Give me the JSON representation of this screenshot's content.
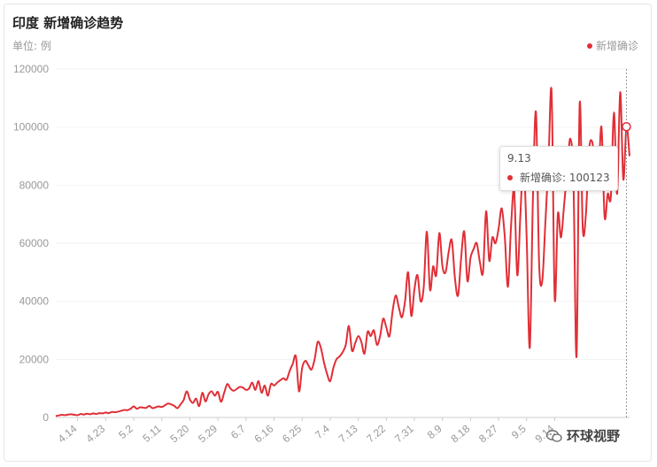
{
  "header": {
    "title": "印度 新增确诊趋势",
    "unit": "单位: 例"
  },
  "legend": {
    "label": "新增确诊",
    "color": "#e02f36"
  },
  "tooltip": {
    "date": "9.13",
    "series_label": "新增确诊",
    "value_text": "100123"
  },
  "watermark": {
    "text": "环球视野",
    "icon": "wechat-icon"
  },
  "chart_data": {
    "type": "line",
    "title": "印度 新增确诊趋势",
    "ylabel": "单位: 例",
    "ylim": [
      0,
      120000
    ],
    "yticks": [
      0,
      20000,
      40000,
      60000,
      80000,
      100000,
      120000
    ],
    "grid": true,
    "legend_position": "top-right",
    "x_tick_labels": [
      "4.14",
      "4.23",
      "5.2",
      "5.11",
      "5.20",
      "5.29",
      "6.7",
      "6.16",
      "6.25",
      "7.4",
      "7.13",
      "7.22",
      "7.31",
      "8.9",
      "8.18",
      "8.27",
      "9.5",
      "9.14"
    ],
    "series": [
      {
        "name": "新增确诊",
        "color": "#e02f36",
        "values": [
          500,
          700,
          900,
          800,
          1000,
          1100,
          900,
          800,
          1200,
          1000,
          1300,
          1100,
          1400,
          1200,
          1500,
          1400,
          1700,
          1500,
          1900,
          1800,
          2000,
          2300,
          2600,
          2500,
          3000,
          3800,
          3000,
          3500,
          3400,
          3300,
          4000,
          3200,
          3500,
          3800,
          3600,
          4200,
          4800,
          4500,
          4000,
          3200,
          4500,
          6000,
          9000,
          6200,
          5000,
          6500,
          3900,
          8500,
          5500,
          8000,
          9000,
          7500,
          8800,
          5400,
          8500,
          11500,
          10000,
          9200,
          9800,
          10500,
          10300,
          9500,
          10000,
          12000,
          9500,
          12500,
          8500,
          11000,
          7500,
          11500,
          11000,
          12000,
          12800,
          13500,
          13000,
          16000,
          18500,
          21000,
          9000,
          17000,
          19500,
          18000,
          16500,
          20000,
          26000,
          24000,
          19000,
          15000,
          12500,
          17000,
          20000,
          21000,
          22500,
          25000,
          31500,
          23000,
          25500,
          28000,
          26000,
          22000,
          29500,
          28000,
          30000,
          25000,
          28000,
          34000,
          31000,
          28000,
          36500,
          42000,
          38000,
          34500,
          40000,
          50000,
          35000,
          44000,
          49000,
          40000,
          45000,
          64000,
          44000,
          52000,
          49000,
          63500,
          52000,
          50000,
          57000,
          61000,
          48000,
          42000,
          55000,
          64000,
          47000,
          55000,
          58000,
          60000,
          53500,
          50000,
          71000,
          54000,
          62000,
          60000,
          65000,
          72000,
          62000,
          45000,
          66000,
          78000,
          49000,
          70000,
          88000,
          62000,
          24000,
          75000,
          105000,
          53000,
          47000,
          67000,
          88000,
          112000,
          41000,
          70000,
          62000,
          73000,
          85000,
          96000,
          82000,
          21000,
          108000,
          65000,
          70000,
          92000,
          95000,
          87000,
          83000,
          100000,
          69000,
          77000,
          76000,
          105000,
          77000,
          112000,
          82000,
          100123,
          90000
        ]
      }
    ]
  }
}
